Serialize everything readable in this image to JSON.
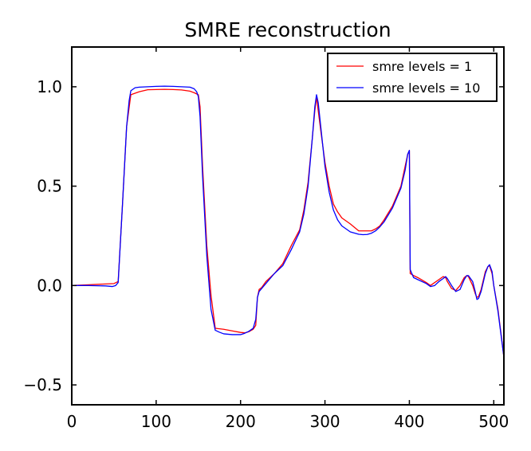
{
  "chart_data": {
    "type": "line",
    "title": "SMRE reconstruction",
    "xlabel": "",
    "ylabel": "",
    "xlim": [
      0,
      512
    ],
    "ylim": [
      -0.6,
      1.2
    ],
    "x_ticks": [
      0,
      100,
      200,
      300,
      400,
      500
    ],
    "x_tick_labels": [
      "0",
      "100",
      "200",
      "300",
      "400",
      "500"
    ],
    "y_ticks": [
      -0.5,
      0.0,
      0.5,
      1.0
    ],
    "y_tick_labels": [
      "−0.5",
      "0.0",
      "0.5",
      "1.0"
    ],
    "grid": false,
    "legend_position": "top-right",
    "series": [
      {
        "name": "smre levels = 1",
        "color": "#ff0000",
        "x": [
          0,
          20,
          40,
          50,
          55,
          60,
          65,
          70,
          80,
          90,
          100,
          110,
          120,
          130,
          140,
          145,
          150,
          152,
          155,
          160,
          165,
          170,
          180,
          190,
          200,
          205,
          210,
          215,
          218,
          220,
          222,
          225,
          230,
          240,
          250,
          260,
          270,
          275,
          280,
          285,
          288,
          290,
          292,
          295,
          300,
          305,
          310,
          315,
          320,
          330,
          340,
          345,
          350,
          355,
          360,
          365,
          370,
          380,
          390,
          395,
          398,
          400,
          401,
          405,
          410,
          420,
          425,
          430,
          435,
          440,
          443,
          445,
          450,
          455,
          460,
          465,
          468,
          470,
          475,
          478,
          480,
          482,
          485,
          490,
          493,
          495,
          498,
          500,
          505,
          512
        ],
        "y": [
          0.0,
          0.004,
          0.008,
          0.01,
          0.02,
          0.4,
          0.8,
          0.96,
          0.975,
          0.985,
          0.986,
          0.987,
          0.986,
          0.984,
          0.978,
          0.97,
          0.96,
          0.9,
          0.6,
          0.2,
          -0.05,
          -0.215,
          -0.22,
          -0.228,
          -0.236,
          -0.238,
          -0.232,
          -0.22,
          -0.2,
          -0.06,
          -0.02,
          -0.01,
          0.02,
          0.06,
          0.11,
          0.2,
          0.28,
          0.38,
          0.52,
          0.74,
          0.88,
          0.95,
          0.88,
          0.78,
          0.62,
          0.5,
          0.41,
          0.37,
          0.34,
          0.31,
          0.275,
          0.275,
          0.275,
          0.275,
          0.285,
          0.3,
          0.33,
          0.4,
          0.5,
          0.6,
          0.66,
          0.68,
          0.06,
          0.05,
          0.04,
          0.015,
          0.0,
          0.015,
          0.03,
          0.045,
          0.04,
          0.02,
          -0.015,
          -0.025,
          0.0,
          0.04,
          0.05,
          0.045,
          0.0,
          -0.04,
          -0.06,
          -0.055,
          -0.02,
          0.07,
          0.095,
          0.1,
          0.06,
          0.0,
          -0.12,
          -0.36
        ]
      },
      {
        "name": "smre levels = 10",
        "color": "#0000ff",
        "x": [
          0,
          20,
          40,
          48,
          52,
          55,
          60,
          65,
          68,
          70,
          75,
          80,
          90,
          100,
          110,
          120,
          130,
          140,
          145,
          148,
          150,
          152,
          155,
          160,
          165,
          170,
          175,
          180,
          190,
          200,
          205,
          210,
          215,
          218,
          220,
          222,
          225,
          230,
          240,
          250,
          260,
          270,
          275,
          280,
          285,
          288,
          290,
          292,
          295,
          300,
          305,
          310,
          315,
          320,
          330,
          340,
          345,
          350,
          355,
          360,
          365,
          370,
          380,
          390,
          395,
          398,
          400,
          401,
          405,
          410,
          420,
          425,
          430,
          435,
          440,
          443,
          445,
          450,
          455,
          460,
          465,
          468,
          470,
          475,
          478,
          480,
          482,
          485,
          490,
          493,
          495,
          498,
          500,
          505,
          512
        ],
        "y": [
          0.0,
          0.0,
          -0.002,
          -0.005,
          0.0,
          0.015,
          0.4,
          0.8,
          0.93,
          0.98,
          0.995,
          0.998,
          1.0,
          1.002,
          1.003,
          1.002,
          1.0,
          0.998,
          0.99,
          0.975,
          0.95,
          0.85,
          0.55,
          0.15,
          -0.12,
          -0.225,
          -0.235,
          -0.243,
          -0.247,
          -0.247,
          -0.24,
          -0.23,
          -0.215,
          -0.17,
          -0.06,
          -0.03,
          -0.015,
          0.01,
          0.06,
          0.1,
          0.18,
          0.27,
          0.36,
          0.5,
          0.74,
          0.9,
          0.96,
          0.92,
          0.8,
          0.6,
          0.47,
          0.38,
          0.33,
          0.3,
          0.27,
          0.258,
          0.256,
          0.257,
          0.263,
          0.275,
          0.295,
          0.32,
          0.39,
          0.49,
          0.58,
          0.66,
          0.68,
          0.08,
          0.04,
          0.03,
          0.01,
          -0.005,
          0.0,
          0.02,
          0.035,
          0.045,
          0.035,
          0.0,
          -0.03,
          -0.02,
          0.03,
          0.05,
          0.05,
          0.02,
          -0.03,
          -0.07,
          -0.065,
          -0.03,
          0.06,
          0.095,
          0.105,
          0.07,
          0.0,
          -0.13,
          -0.36
        ]
      }
    ]
  }
}
